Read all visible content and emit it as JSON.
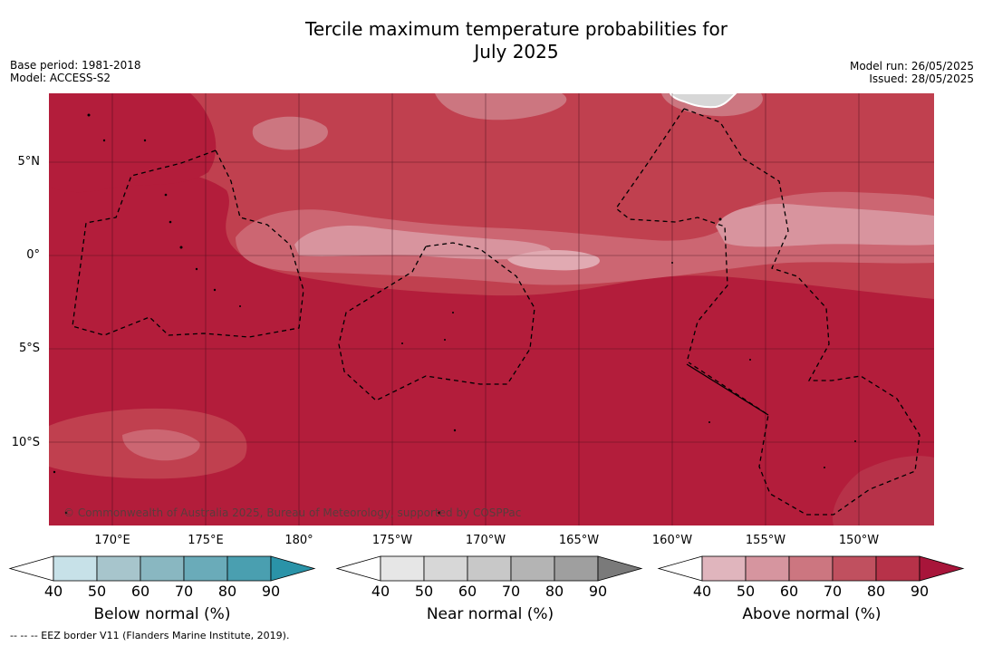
{
  "title_line1": "Tercile maximum temperature probabilities for",
  "title_line2": "July 2025",
  "base_period": "Base period: 1981-2018",
  "model": "Model: ACCESS-S2",
  "model_run": "Model run: 26/05/2025",
  "issued": "Issued: 28/05/2025",
  "lat_labels": [
    "5°N",
    "0°",
    "5°S",
    "10°S"
  ],
  "lon_labels": [
    "170°E",
    "175°E",
    "180°",
    "175°W",
    "170°W",
    "165°W",
    "160°W",
    "155°W",
    "150°W"
  ],
  "copyright": "© Commonwealth of Australia 2025, Bureau of Meteorology, supported by COSPPac",
  "colorbars": [
    {
      "label": "Below normal (%)",
      "ticks": [
        "40",
        "50",
        "60",
        "70",
        "80",
        "90"
      ],
      "colors": [
        "#ffffff",
        "#c7e1e8",
        "#a7c5cc",
        "#89b7c1",
        "#6aabb9",
        "#4a9fb0",
        "#2a93a8"
      ]
    },
    {
      "label": "Near normal (%)",
      "ticks": [
        "40",
        "50",
        "60",
        "70",
        "80",
        "90"
      ],
      "colors": [
        "#ffffff",
        "#e6e6e6",
        "#d7d7d7",
        "#c8c8c8",
        "#b4b4b4",
        "#9f9f9f",
        "#7a7a7a"
      ]
    },
    {
      "label": "Above normal (%)",
      "ticks": [
        "40",
        "50",
        "60",
        "70",
        "80",
        "90"
      ],
      "colors": [
        "#ffffff",
        "#e0b5bd",
        "#d6959f",
        "#cc7680",
        "#c0505f",
        "#b73249",
        "#a8153a"
      ]
    }
  ],
  "footer": "--  --  -- EEZ border V11 (Flanders Marine Institute, 2019)."
}
